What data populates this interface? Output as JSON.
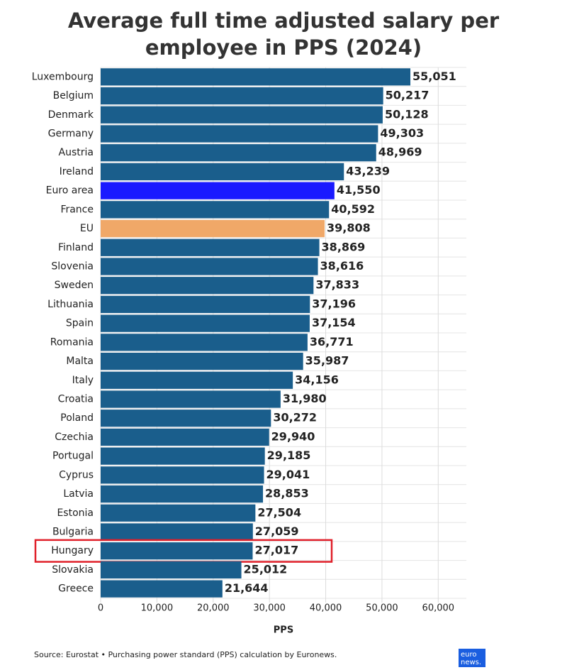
{
  "chart_data": {
    "type": "hbar",
    "title": "Average full time adjusted salary per employee in PPS (2024)",
    "xlabel": "PPS",
    "source": "Source: Eurostat • Purchasing power standard (PPS) calculation by Euronews.",
    "logo": [
      "euro",
      "news."
    ],
    "categories": [
      "Luxembourg",
      "Belgium",
      "Denmark",
      "Germany",
      "Austria",
      "Ireland",
      "Euro area",
      "France",
      "EU",
      "Finland",
      "Slovenia",
      "Sweden",
      "Lithuania",
      "Spain",
      "Romania",
      "Malta",
      "Italy",
      "Croatia",
      "Poland",
      "Czechia",
      "Portugal",
      "Cyprus",
      "Latvia",
      "Estonia",
      "Bulgaria",
      "Hungary",
      "Slovakia",
      "Greece"
    ],
    "values": [
      55051,
      50217,
      50128,
      49303,
      48969,
      43239,
      41550,
      40592,
      39808,
      38869,
      38616,
      37833,
      37196,
      37154,
      36771,
      35987,
      34156,
      31980,
      30272,
      29940,
      29185,
      29041,
      28853,
      27504,
      27059,
      27017,
      25012,
      21644
    ],
    "value_labels": [
      "55,051",
      "50,217",
      "50,128",
      "49,303",
      "48,969",
      "43,239",
      "41,550",
      "40,592",
      "39,808",
      "38,869",
      "38,616",
      "37,833",
      "37,196",
      "37,154",
      "36,771",
      "35,987",
      "34,156",
      "31,980",
      "30,272",
      "29,940",
      "29,185",
      "29,041",
      "28,853",
      "27,504",
      "27,059",
      "27,017",
      "25,012",
      "21,644"
    ],
    "colors": [
      "#1a5e8c",
      "#1a5e8c",
      "#1a5e8c",
      "#1a5e8c",
      "#1a5e8c",
      "#1a5e8c",
      "#1a1aff",
      "#1a5e8c",
      "#f0a868",
      "#1a5e8c",
      "#1a5e8c",
      "#1a5e8c",
      "#1a5e8c",
      "#1a5e8c",
      "#1a5e8c",
      "#1a5e8c",
      "#1a5e8c",
      "#1a5e8c",
      "#1a5e8c",
      "#1a5e8c",
      "#1a5e8c",
      "#1a5e8c",
      "#1a5e8c",
      "#1a5e8c",
      "#1a5e8c",
      "#1a5e8c",
      "#1a5e8c",
      "#1a5e8c"
    ],
    "highlight": "Hungary",
    "highlight_color": "#e0202a",
    "xlim": [
      0,
      65000
    ],
    "xticks": [
      0,
      {
        "value": 10000,
        "label": "10,000"
      },
      {
        "value": 20000,
        "label": "20,000"
      },
      {
        "value": 30000,
        "label": "30,000"
      },
      {
        "value": 40000,
        "label": "40,000"
      },
      {
        "value": 50000,
        "label": "50,000"
      },
      {
        "value": 60000,
        "label": "60,000"
      }
    ],
    "grid": true
  }
}
